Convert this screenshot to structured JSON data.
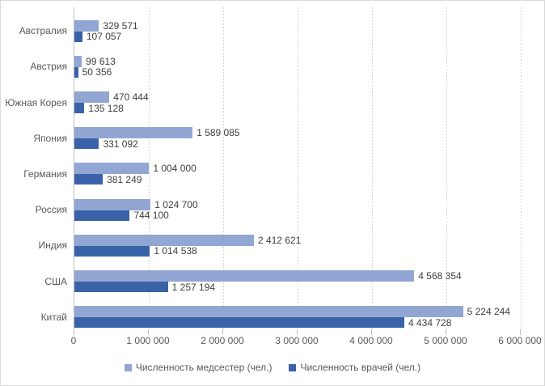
{
  "chart_data": {
    "type": "bar",
    "orientation": "horizontal",
    "title": "",
    "xlabel": "",
    "ylabel": "",
    "categories": [
      "Австралия",
      "Австрия",
      "Южная Корея",
      "Япония",
      "Германия",
      "Россия",
      "Индия",
      "США",
      "Китай"
    ],
    "series": [
      {
        "name": "Численность медсестер (чел.)",
        "color": "#92A6D3",
        "values": [
          329571,
          99613,
          470444,
          1589085,
          1004000,
          1024700,
          2412621,
          4568354,
          5224244
        ],
        "labels": [
          "329 571",
          "99 613",
          "470 444",
          "1 589 085",
          "1 004 000",
          "1 024 700",
          "2 412 621",
          "4 568 354",
          "5 224 244"
        ]
      },
      {
        "name": "Численность врачей (чел.)",
        "color": "#3A62A8",
        "values": [
          107057,
          50356,
          135128,
          331092,
          381249,
          744100,
          1014538,
          1257194,
          4434728
        ],
        "labels": [
          "107 057",
          "50 356",
          "135 128",
          "331 092",
          "381 249",
          "744 100",
          "1 014 538",
          "1 257 194",
          "4 434 728"
        ]
      }
    ],
    "xlim": [
      0,
      6000000
    ],
    "x_ticks": [
      "0",
      "1 000 000",
      "2 000 000",
      "3 000 000",
      "4 000 000",
      "5 000 000",
      "6 000 000"
    ],
    "grid": "vertical-dashed",
    "legend_position": "bottom"
  },
  "colors": {
    "gridline": "#D4D4D4",
    "axis_line": "#BFBFBF",
    "chart_border": "#D9D9D9",
    "value_label_text": "#404040",
    "axis_text": "#595959"
  }
}
